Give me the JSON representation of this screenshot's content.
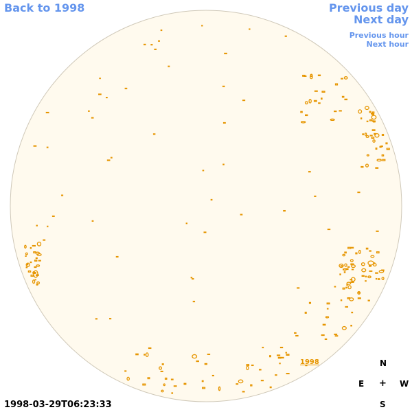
{
  "nav": {
    "back_label": "Back to 1998",
    "previous_day_label": "Previous day",
    "next_day_label": "Next day",
    "previous_hour_label": "Previous hour",
    "next_hour_label": "Next hour"
  },
  "timestamp": "1998-03-29T06:23:33",
  "disk": {
    "fill_color": "#fffaee",
    "border_color": "#cfc8b8",
    "contour_color": "#e69500",
    "year_label": "1998"
  },
  "compass": {
    "north": "N",
    "east": "E",
    "center": "+",
    "west": "W",
    "south": "S"
  },
  "colors": {
    "link": "#6495ed",
    "contour": "#e69500"
  }
}
